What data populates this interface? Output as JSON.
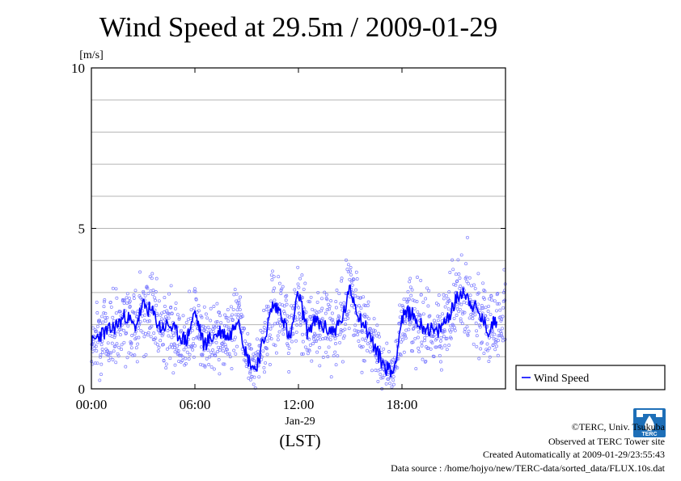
{
  "chart_data": {
    "type": "line",
    "title": "Wind Speed at 29.5m / 2009-01-29",
    "ylabel": "[m/s]",
    "xlabel": "(LST)",
    "date_label": "Jan-29",
    "ylim": [
      0,
      10
    ],
    "xlim": [
      "00:00",
      "24:00"
    ],
    "x_ticks": [
      "00:00",
      "06:00",
      "12:00",
      "18:00"
    ],
    "y_ticks": [
      "0",
      "5",
      "10"
    ],
    "grid": "horizontal",
    "legend_position": "bottom-right, outside plot",
    "series": [
      {
        "name": "Wind Speed",
        "color": "#0000ff",
        "point_color": "#7a7aff",
        "x": [
          "00:00",
          "00:30",
          "01:00",
          "01:30",
          "02:00",
          "02:30",
          "03:00",
          "03:30",
          "04:00",
          "04:30",
          "05:00",
          "05:30",
          "06:00",
          "06:30",
          "07:00",
          "07:30",
          "08:00",
          "08:30",
          "09:00",
          "09:30",
          "10:00",
          "10:30",
          "11:00",
          "11:30",
          "12:00",
          "12:30",
          "13:00",
          "13:30",
          "14:00",
          "14:30",
          "15:00",
          "15:30",
          "16:00",
          "16:30",
          "17:00",
          "17:30",
          "18:00",
          "18:30",
          "19:00",
          "19:30",
          "20:00",
          "20:30",
          "21:00",
          "21:30",
          "22:00",
          "22:30",
          "23:00",
          "23:30"
        ],
        "values": [
          1.4,
          1.7,
          1.8,
          2.0,
          2.3,
          1.9,
          2.6,
          2.4,
          1.9,
          2.0,
          1.7,
          1.5,
          2.4,
          1.4,
          1.6,
          1.8,
          1.6,
          2.3,
          1.0,
          0.6,
          1.5,
          2.6,
          2.4,
          1.5,
          3.0,
          1.8,
          2.1,
          1.9,
          1.8,
          2.1,
          3.1,
          2.3,
          1.8,
          1.2,
          0.7,
          0.5,
          2.2,
          2.4,
          2.0,
          1.9,
          1.7,
          2.1,
          2.6,
          3.1,
          2.7,
          2.3,
          1.8,
          2.2
        ]
      }
    ]
  },
  "logo": {
    "text": "TERC",
    "color": "#1e6fb8"
  },
  "footer": {
    "copyright": "©TERC, Univ. Tsukuba",
    "observed": "Observed at TERC Tower site",
    "created": "Created Automatically at 2009-01-29/23:55:43",
    "source": "Data source : /home/hojyo/new/TERC-data/sorted_data/FLUX.10s.dat"
  }
}
